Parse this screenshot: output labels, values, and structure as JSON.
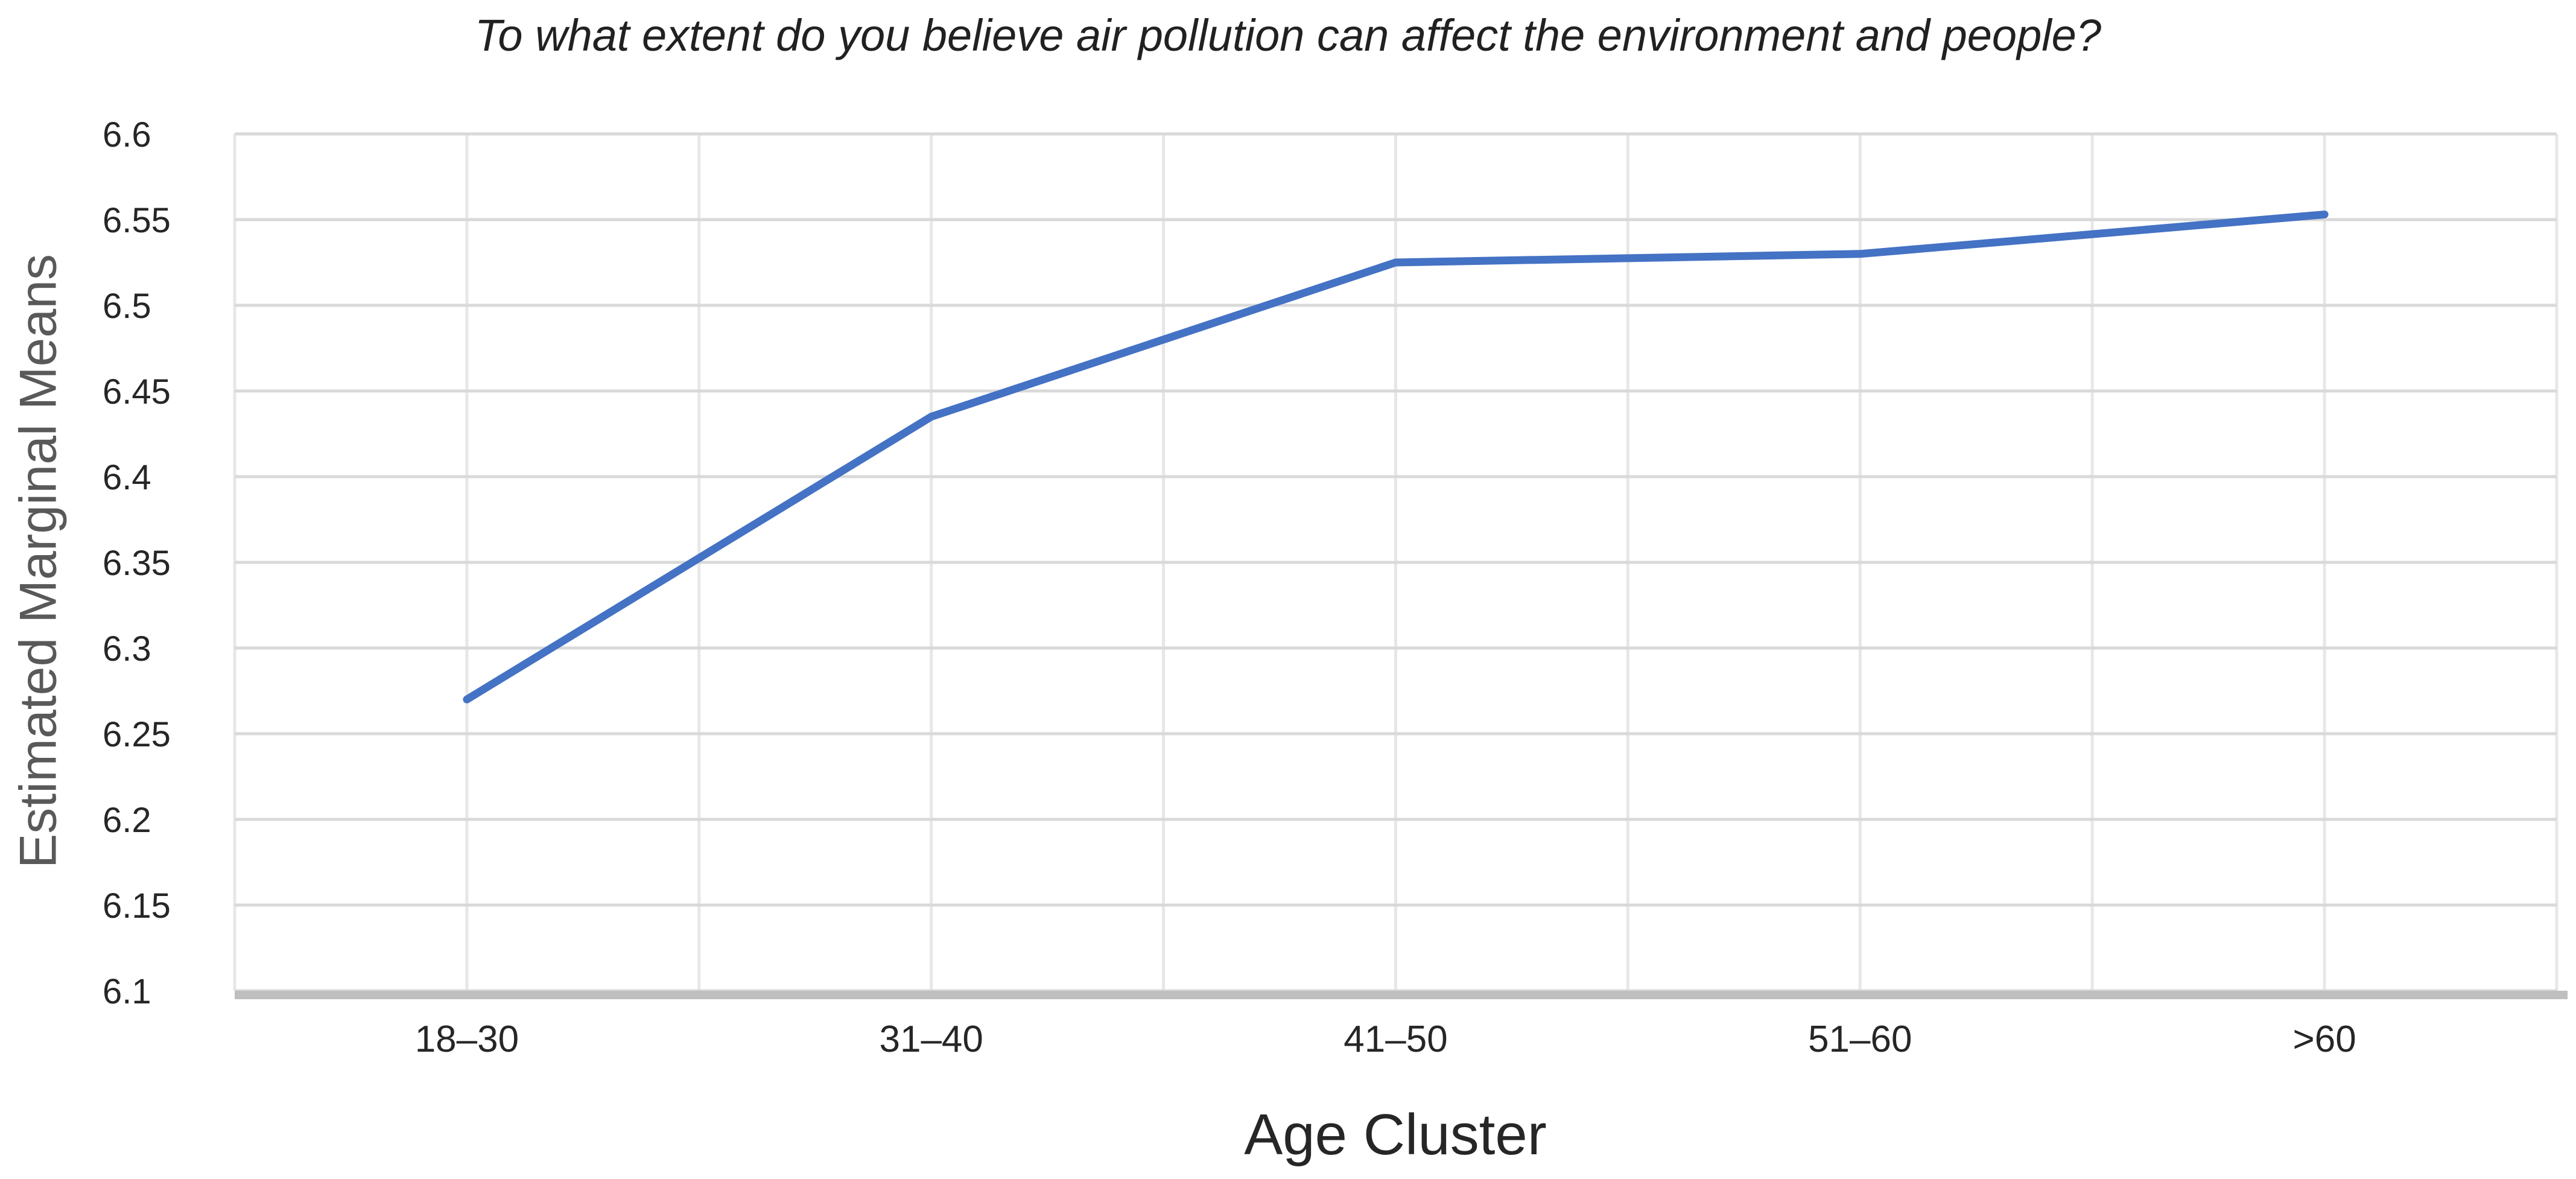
{
  "title": "To what extent do you believe air pollution can affect the environment and people?",
  "chart_data": {
    "type": "line",
    "title": "To what extent do you believe air pollution can affect the environment and people?",
    "categories": [
      "18–30",
      "31–40",
      "41–50",
      "51–60",
      ">60"
    ],
    "series": [
      {
        "name": "Estimated Marginal Means",
        "values": [
          6.27,
          6.435,
          6.525,
          6.53,
          6.553
        ],
        "color": "#4472C4"
      }
    ],
    "xlabel": "Age Cluster",
    "ylabel": "Estimated Marginal Means",
    "ylim": [
      6.1,
      6.6
    ],
    "ytick_step": 0.05,
    "yticks": [
      "6.6",
      "6.55",
      "6.5",
      "6.45",
      "6.4",
      "6.35",
      "6.3",
      "6.25",
      "6.2",
      "6.15",
      "6.1"
    ],
    "grid": true,
    "legend": "none",
    "colors": {
      "line": "#4472C4",
      "h_gridline": "#D9D9D9",
      "v_gridline": "#E7E7E7",
      "axis_band": "#BFBFBF",
      "tick_label": "#262626",
      "y_axis_title": "#595959",
      "x_axis_title": "#262626",
      "title": "#212121"
    }
  }
}
